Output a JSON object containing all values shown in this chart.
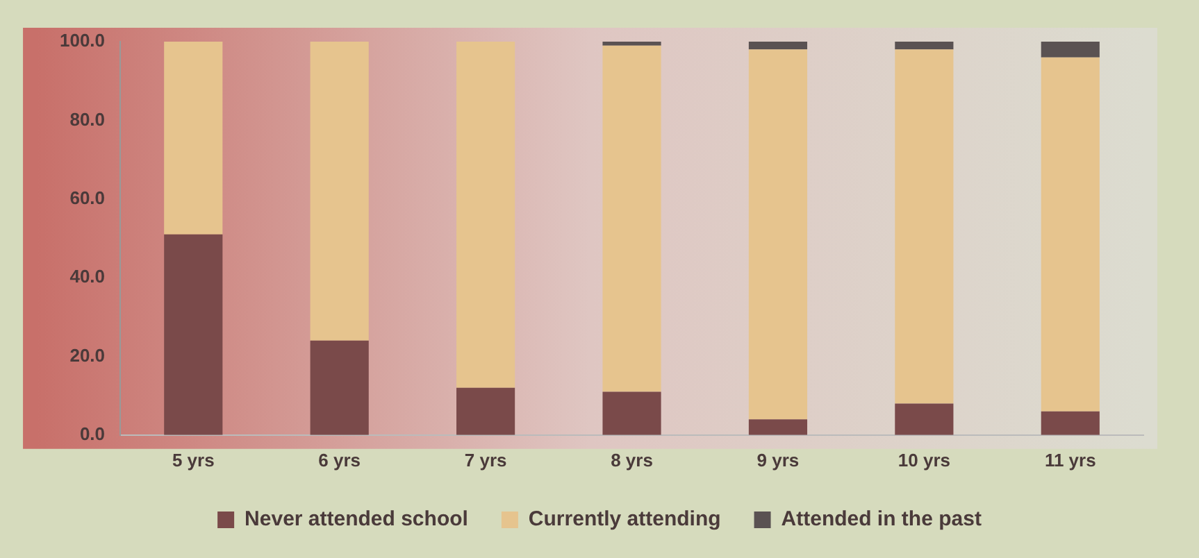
{
  "chart_data": {
    "type": "bar",
    "stacked": true,
    "categories": [
      "5 yrs",
      "6 yrs",
      "7 yrs",
      "8 yrs",
      "9 yrs",
      "10 yrs",
      "11 yrs"
    ],
    "series": [
      {
        "name": "Never attended school",
        "color": "#7a4a4a",
        "values": [
          51,
          24,
          12,
          11,
          4,
          8,
          6
        ]
      },
      {
        "name": "Currently attending",
        "color": "#e6c48e",
        "values": [
          49,
          76,
          88,
          88,
          94,
          90,
          90
        ]
      },
      {
        "name": "Attended in the past",
        "color": "#5a5252",
        "values": [
          0,
          0,
          0,
          1,
          2,
          2,
          4
        ]
      }
    ],
    "ylim": [
      0,
      100
    ],
    "yticks": [
      {
        "value": 0,
        "label": "0.0"
      },
      {
        "value": 20,
        "label": "20.0"
      },
      {
        "value": 40,
        "label": "40.0"
      },
      {
        "value": 60,
        "label": "60.0"
      },
      {
        "value": 80,
        "label": "80.0"
      },
      {
        "value": 100,
        "label": "100.0"
      }
    ],
    "grid": false,
    "legend": "bottom"
  }
}
